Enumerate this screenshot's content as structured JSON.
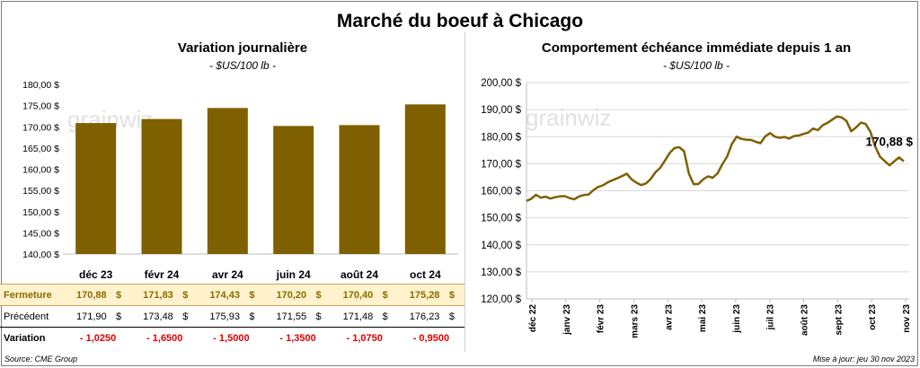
{
  "header": {
    "title": "Marché du boeuf à Chicago"
  },
  "left_panel": {
    "title": "Variation journalière",
    "subtitle": "- $US/100 lb -",
    "watermark": "grainwiz"
  },
  "right_panel": {
    "title": "Comportement échéance immédiate depuis 1 an",
    "subtitle": "- $US/100 lb -",
    "watermark": "grainwiz",
    "last_label": "170,88 $"
  },
  "table": {
    "rows": [
      {
        "label": "Fermeture",
        "values": [
          "170,88",
          "171,83",
          "174,43",
          "170,20",
          "170,40",
          "175,28"
        ],
        "unit": "$"
      },
      {
        "label": "Précédent",
        "values": [
          "171,90",
          "173,48",
          "175,93",
          "171,55",
          "171,48",
          "176,23"
        ],
        "unit": "$"
      },
      {
        "label": "Variation",
        "values": [
          "- 1,0250",
          "- 1,6500",
          "- 1,5000",
          "- 1,3500",
          "- 1,0750",
          "- 0,9500"
        ],
        "unit": ""
      }
    ]
  },
  "footer": {
    "source": "Source: CME Group",
    "updated": "Mise à jour: jeu 30 nov 2023"
  },
  "colors": {
    "bar": "#7f6000",
    "line": "#7f6000",
    "negative": "#e00000",
    "highlight_row": "#fff2cc"
  },
  "chart_data": [
    {
      "type": "bar",
      "title": "Variation journalière",
      "subtitle": "- $US/100 lb -",
      "categories": [
        "déc 23",
        "févr 24",
        "avr 24",
        "juin 24",
        "août 24",
        "oct 24"
      ],
      "values": [
        170.88,
        171.83,
        174.43,
        170.2,
        170.4,
        175.28
      ],
      "ylim": [
        140,
        180
      ],
      "yticks": [
        140,
        145,
        150,
        155,
        160,
        165,
        170,
        175,
        180
      ],
      "ytick_labels": [
        "140,00 $",
        "145,00 $",
        "150,00 $",
        "155,00 $",
        "160,00 $",
        "165,00 $",
        "170,00 $",
        "175,00 $",
        "180,00 $"
      ],
      "grid": false
    },
    {
      "type": "line",
      "title": "Comportement échéance immédiate depuis 1 an",
      "subtitle": "- $US/100 lb -",
      "xlabels": [
        "déc 22",
        "janv 23",
        "févr 23",
        "mars 23",
        "avr 23",
        "mai 23",
        "juin 23",
        "juil 23",
        "août 23",
        "sept 23",
        "oct 23",
        "nov 23"
      ],
      "ylim": [
        120,
        200
      ],
      "yticks": [
        120,
        130,
        140,
        150,
        160,
        170,
        180,
        190,
        200
      ],
      "ytick_labels": [
        "120,00 $",
        "130,00 $",
        "140,00 $",
        "150,00 $",
        "160,00 $",
        "170,00 $",
        "180,00 $",
        "190,00 $",
        "200,00 $"
      ],
      "grid": true,
      "series": [
        {
          "values": [
            156.2,
            157.0,
            158.5,
            157.4,
            157.8,
            157.1,
            157.6,
            157.9,
            158.0,
            157.3,
            156.8,
            157.9,
            158.4,
            158.6,
            160.2,
            161.4,
            162.0,
            163.1,
            163.9,
            164.6,
            165.4,
            166.3,
            164.2,
            163.0,
            162.1,
            162.7,
            164.3,
            166.8,
            168.5,
            171.2,
            174.0,
            175.8,
            176.1,
            174.6,
            166.3,
            162.4,
            162.5,
            164.2,
            165.3,
            164.8,
            166.4,
            169.8,
            172.6,
            177.3,
            180.0,
            179.2,
            178.9,
            178.8,
            178.1,
            177.6,
            180.1,
            181.3,
            180.0,
            179.6,
            179.9,
            179.3,
            180.2,
            180.4,
            181.0,
            181.5,
            183.0,
            182.4,
            184.2,
            185.1,
            186.3,
            187.5,
            187.1,
            185.8,
            182.0,
            183.4,
            185.2,
            184.7,
            181.8,
            176.4,
            172.6,
            171.0,
            169.4,
            170.9,
            172.3,
            170.88
          ]
        }
      ],
      "annotations": [
        "170,88 $"
      ]
    }
  ]
}
